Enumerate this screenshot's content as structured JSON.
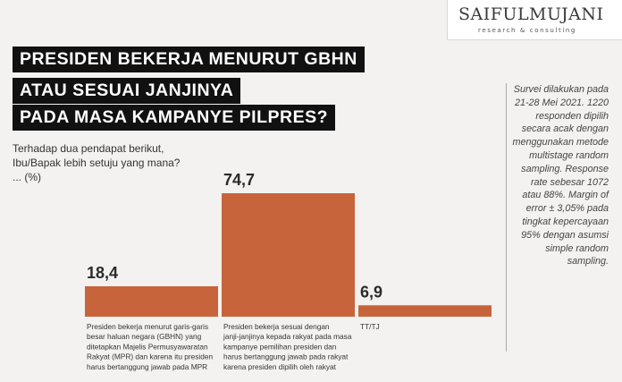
{
  "logo": {
    "name": "SAIFULMUJANI",
    "tagline": "research & consulting"
  },
  "title_lines": [
    "PRESIDEN BEKERJA MENURUT GBHN",
    "ATAU SESUAI JANJINYA",
    "PADA MASA KAMPANYE PILPRES?"
  ],
  "question": "Terhadap dua pendapat berikut, Ibu/Bapak lebih setuju yang mana? ... (%)",
  "note": "Survei dilakukan pada 21-28 Mei 2021. 1220 responden dipilih secara acak dengan menggunakan metode multistage random sampling. Response rate sebesar 1072 atau 88%. Margin of error ± 3,05% pada tingkat kepercayaan 95% dengan asumsi simple random sampling.",
  "colors": {
    "bar": "#c8643b",
    "title_bg": "#111111",
    "title_text": "#ffffff"
  },
  "chart_data": {
    "type": "bar",
    "title": "PRESIDEN BEKERJA MENURUT GBHN ATAU SESUAI JANJINYA PADA MASA KAMPANYE PILPRES?",
    "ylabel": "%",
    "categories": [
      "Presiden bekerja menurut garis-garis besar haluan negara (GBHN) yang ditetapkan Majelis Permusyawaratan Rakyat (MPR) dan karena itu presiden harus bertanggung jawab pada MPR",
      "Presiden bekerja sesuai dengan janji-janjinya kepada rakyat pada masa kampanye pemilihan presiden dan harus bertanggung jawab pada rakyat karena presiden dipilih oleh rakyat",
      "TT/TJ"
    ],
    "category_lines": [
      [
        "Presiden bekerja menurut garis-garis",
        "besar haluan negara (GBHN) yang",
        "ditetapkan Majelis Permusyawaratan",
        "Rakyat (MPR) dan karena itu presiden",
        "harus bertanggung jawab pada MPR"
      ],
      [
        "Presiden bekerja sesuai dengan",
        "janji-janjinya kepada rakyat pada masa",
        "kampanye pemilihan presiden dan",
        "harus bertanggung jawab pada rakyat",
        "karena presiden dipilih oleh rakyat"
      ],
      [
        "TT/TJ"
      ]
    ],
    "values": [
      18.4,
      74.7,
      6.9
    ],
    "value_labels": [
      "18,4",
      "74,7",
      "6,9"
    ],
    "ylim": [
      0,
      74.7
    ],
    "grid": false,
    "legend": "none"
  }
}
